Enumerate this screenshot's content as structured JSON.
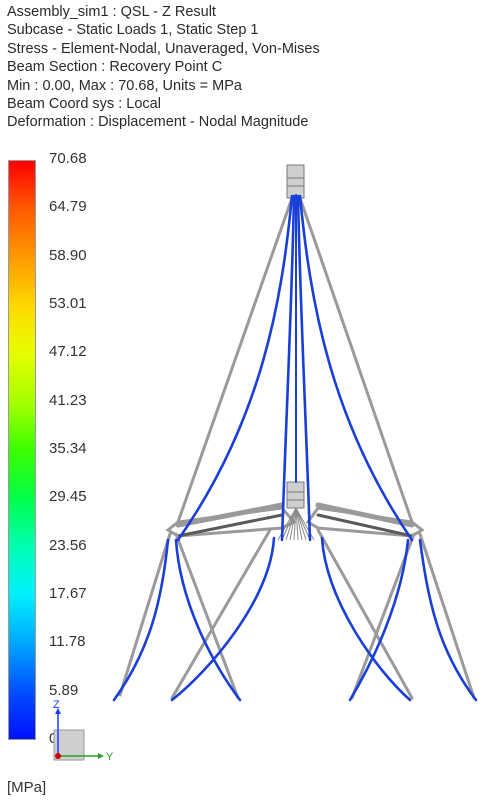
{
  "header": {
    "lines": [
      "Assembly_sim1 : QSL - Z Result",
      "Subcase - Static Loads 1, Static Step 1",
      "Stress - Element-Nodal, Unaveraged, Von-Mises",
      "Beam Section : Recovery Point C",
      "Min : 0.00, Max : 70.68, Units = MPa",
      "Beam Coord sys : Local",
      "Deformation : Displacement - Nodal Magnitude"
    ]
  },
  "legend": {
    "values": [
      "70.68",
      "64.79",
      "58.90",
      "53.01",
      "47.12",
      "41.23",
      "35.34",
      "29.45",
      "23.56",
      "17.67",
      "11.78",
      "5.89",
      "0.00"
    ],
    "units": "[MPa]",
    "top_color": "#ff0000",
    "bottom_color": "#0010ff"
  },
  "triad": {
    "z_label": "Z",
    "y_label": "Y",
    "z_color": "#1a3cff",
    "y_color": "#2aa02a",
    "origin_color": "#d00000"
  },
  "colors": {
    "undeformed": "#9a9a9a",
    "deformed": "#1a3ed8"
  }
}
